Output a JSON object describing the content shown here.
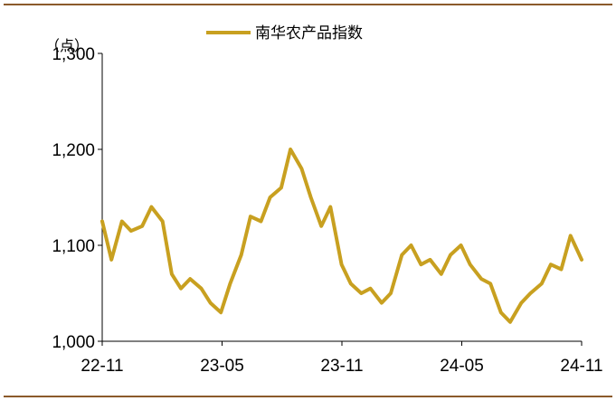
{
  "colors": {
    "frame_line": "#8B5A2B",
    "series": "#C8A020",
    "axis": "#000000"
  },
  "chart_data": {
    "type": "line",
    "unit_label": "（点）",
    "ylim": [
      1000,
      1300
    ],
    "yticks": [
      1000,
      1100,
      1200,
      1300
    ],
    "ytick_labels": [
      "1,000",
      "1,100",
      "1,200",
      "1,300"
    ],
    "xticks": [
      "22-11",
      "23-05",
      "23-11",
      "24-05",
      "24-11"
    ],
    "grid": false,
    "legend_position": "top-center",
    "series": [
      {
        "name": "南华农产品指数",
        "x": [
          "2022-11-01",
          "2022-11-15",
          "2022-12-01",
          "2022-12-15",
          "2023-01-01",
          "2023-01-15",
          "2023-02-01",
          "2023-02-15",
          "2023-03-01",
          "2023-03-15",
          "2023-04-01",
          "2023-04-15",
          "2023-05-01",
          "2023-05-15",
          "2023-06-01",
          "2023-06-15",
          "2023-07-01",
          "2023-07-15",
          "2023-08-01",
          "2023-08-15",
          "2023-09-01",
          "2023-09-15",
          "2023-10-01",
          "2023-10-15",
          "2023-11-01",
          "2023-11-15",
          "2023-12-01",
          "2023-12-15",
          "2024-01-01",
          "2024-01-15",
          "2024-02-01",
          "2024-02-15",
          "2024-03-01",
          "2024-03-15",
          "2024-04-01",
          "2024-04-15",
          "2024-05-01",
          "2024-05-15",
          "2024-06-01",
          "2024-06-15",
          "2024-07-01",
          "2024-07-15",
          "2024-08-01",
          "2024-08-15",
          "2024-09-01",
          "2024-09-15",
          "2024-10-01",
          "2024-10-15",
          "2024-11-01"
        ],
        "y": [
          1125,
          1085,
          1125,
          1115,
          1120,
          1140,
          1125,
          1070,
          1055,
          1065,
          1055,
          1040,
          1030,
          1060,
          1090,
          1130,
          1125,
          1150,
          1160,
          1200,
          1180,
          1150,
          1120,
          1140,
          1080,
          1060,
          1050,
          1055,
          1040,
          1050,
          1090,
          1100,
          1080,
          1085,
          1070,
          1090,
          1100,
          1080,
          1065,
          1060,
          1030,
          1020,
          1040,
          1050,
          1060,
          1080,
          1075,
          1110,
          1085
        ]
      }
    ]
  }
}
